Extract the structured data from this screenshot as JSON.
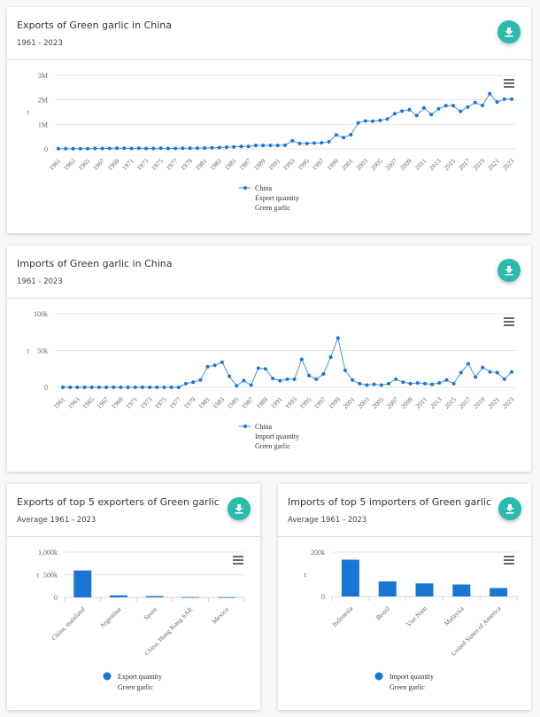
{
  "colors": {
    "accent": "#2bbbad",
    "series": "#1976d2",
    "line": "#4a90e2"
  },
  "cards": [
    {
      "title": "Exports of Green garlic in China",
      "subtitle": "1961 - 2023",
      "download_icon": "download-icon",
      "menu_icon": "hamburger-menu-icon"
    },
    {
      "title": "Imports of Green garlic in China",
      "subtitle": "1961 - 2023",
      "download_icon": "download-icon",
      "menu_icon": "hamburger-menu-icon"
    },
    {
      "title": "Exports of top 5 exporters of Green garlic",
      "subtitle": "Average 1961 - 2023",
      "download_icon": "download-icon",
      "menu_icon": "hamburger-menu-icon"
    },
    {
      "title": "Imports of top 5 importers of Green garlic",
      "subtitle": "Average 1961 - 2023",
      "download_icon": "download-icon",
      "menu_icon": "hamburger-menu-icon"
    }
  ],
  "chart_data": [
    {
      "type": "line",
      "title": "Exports of Green garlic in China",
      "ylabel": "t",
      "ylim": [
        0,
        3000000
      ],
      "yticks": [
        0,
        1000000,
        2000000,
        3000000
      ],
      "ytick_labels": [
        "0",
        "1M",
        "2M",
        "3M"
      ],
      "x_start": 1961,
      "x_end": 2023,
      "xtick_step": 2,
      "grid": true,
      "legend": {
        "position": "bottom",
        "lines": [
          "China",
          "Export quantity",
          "Green garlic"
        ]
      },
      "values": [
        10000,
        10000,
        10000,
        10000,
        10000,
        20000,
        20000,
        20000,
        25000,
        25000,
        20000,
        25000,
        20000,
        20000,
        25000,
        20000,
        20000,
        25000,
        25000,
        25000,
        35000,
        45000,
        55000,
        70000,
        80000,
        100000,
        100000,
        140000,
        140000,
        140000,
        140000,
        150000,
        330000,
        220000,
        220000,
        240000,
        250000,
        290000,
        570000,
        460000,
        580000,
        1060000,
        1140000,
        1130000,
        1160000,
        1220000,
        1430000,
        1540000,
        1600000,
        1360000,
        1670000,
        1400000,
        1630000,
        1760000,
        1760000,
        1530000,
        1710000,
        1890000,
        1770000,
        2250000,
        1910000,
        2030000,
        2030000
      ]
    },
    {
      "type": "line",
      "title": "Imports of Green garlic in China",
      "ylabel": "t",
      "ylim": [
        0,
        100000
      ],
      "yticks": [
        0,
        50000,
        100000
      ],
      "ytick_labels": [
        "0",
        "50k",
        "100k"
      ],
      "x_start": 1961,
      "x_end": 2023,
      "xtick_step": 2,
      "grid": true,
      "legend": {
        "position": "bottom",
        "lines": [
          "China",
          "Import quantity",
          "Green garlic"
        ]
      },
      "values": [
        0,
        0,
        0,
        0,
        0,
        0,
        0,
        0,
        0,
        0,
        0,
        0,
        0,
        0,
        0,
        0,
        0,
        5000,
        7000,
        10000,
        28000,
        30000,
        34000,
        15000,
        2000,
        9000,
        3000,
        26000,
        25000,
        12000,
        9000,
        11000,
        11000,
        38000,
        16000,
        11000,
        18000,
        41000,
        67000,
        23000,
        10000,
        5000,
        3000,
        4000,
        3000,
        5000,
        11000,
        7000,
        5000,
        6000,
        5000,
        4000,
        6000,
        10000,
        5000,
        20000,
        32000,
        14000,
        27000,
        21000,
        20000,
        11000,
        21000
      ]
    },
    {
      "type": "bar",
      "title": "Exports of top 5 exporters of Green garlic",
      "ylabel": "t",
      "ylim": [
        0,
        1000000
      ],
      "yticks": [
        0,
        500000,
        1000000
      ],
      "ytick_labels": [
        "0",
        "500k",
        "1,000k"
      ],
      "categories": [
        "China, mainland",
        "Argentina",
        "Spain",
        "China, Hong Kong SAR",
        "Mexico"
      ],
      "values": [
        595000,
        45000,
        28000,
        5000,
        3000
      ],
      "legend": {
        "position": "bottom",
        "lines": [
          "Export quantity",
          "Green garlic"
        ]
      }
    },
    {
      "type": "bar",
      "title": "Imports of top 5 importers of Green garlic",
      "ylabel": "t",
      "ylim": [
        0,
        200000
      ],
      "yticks": [
        0,
        200000
      ],
      "ytick_labels": [
        "0",
        "200k"
      ],
      "categories": [
        "Indonesia",
        "Brazil",
        "Viet Nam",
        "Malaysia",
        "United States of America"
      ],
      "values": [
        166000,
        68000,
        59000,
        54000,
        38000
      ],
      "legend": {
        "position": "bottom",
        "lines": [
          "Import quantity",
          "Green garlic"
        ]
      }
    }
  ]
}
